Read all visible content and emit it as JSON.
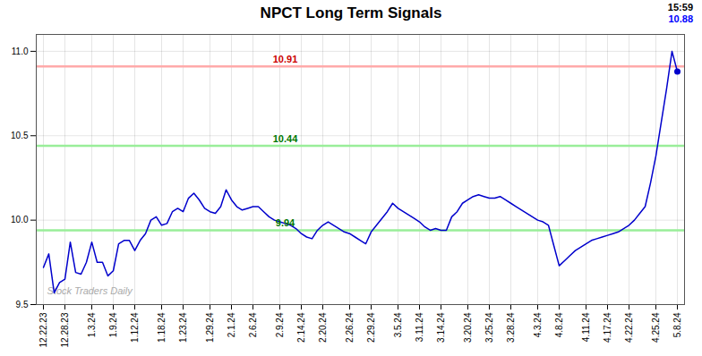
{
  "chart_data": {
    "type": "line",
    "title": "NPCT Long Term Signals",
    "categories": [
      "12.22.23",
      null,
      null,
      null,
      "12.28.23",
      null,
      null,
      null,
      null,
      "1.3.24",
      null,
      null,
      null,
      "1.9.24",
      null,
      null,
      null,
      "1.12.24",
      null,
      null,
      null,
      null,
      "1.18.24",
      null,
      null,
      null,
      "1.23.24",
      null,
      null,
      null,
      null,
      "1.29.24",
      null,
      null,
      null,
      "2.1.24",
      null,
      null,
      null,
      "2.6.24",
      null,
      null,
      null,
      null,
      "2.9.24",
      null,
      null,
      null,
      "2.14.24",
      null,
      null,
      null,
      "2.20.24",
      null,
      null,
      null,
      null,
      "2.26.24",
      null,
      null,
      null,
      "2.29.24",
      null,
      null,
      null,
      null,
      "3.5.24",
      null,
      null,
      null,
      "3.11.24",
      null,
      null,
      null,
      "3.14.24",
      null,
      null,
      null,
      null,
      "3.20.24",
      null,
      null,
      null,
      "3.25.24",
      null,
      null,
      null,
      "3.28.24",
      null,
      null,
      null,
      null,
      "4.3.24",
      null,
      null,
      null,
      "4.8.24",
      null,
      null,
      null,
      null,
      "4.11.24",
      null,
      null,
      null,
      "4.17.24",
      null,
      null,
      null,
      "4.22.24",
      null,
      null,
      null,
      null,
      "4.25.24",
      null,
      null,
      null,
      "5.8.24"
    ],
    "values": [
      9.72,
      9.8,
      9.57,
      9.63,
      9.65,
      9.87,
      9.69,
      9.68,
      9.75,
      9.87,
      9.75,
      9.75,
      9.67,
      9.7,
      9.86,
      9.88,
      9.88,
      9.82,
      9.88,
      9.92,
      10.0,
      10.02,
      9.97,
      9.98,
      10.05,
      10.07,
      10.05,
      10.13,
      10.16,
      10.12,
      10.07,
      10.05,
      10.04,
      10.08,
      10.18,
      10.12,
      10.08,
      10.06,
      10.07,
      10.08,
      10.08,
      10.05,
      10.02,
      10.0,
      9.99,
      9.98,
      9.97,
      9.95,
      9.92,
      9.9,
      9.89,
      9.94,
      9.97,
      9.99,
      9.97,
      9.95,
      9.93,
      9.92,
      9.9,
      9.88,
      9.86,
      9.93,
      9.97,
      10.01,
      10.05,
      10.1,
      10.07,
      10.05,
      10.03,
      10.01,
      9.99,
      9.96,
      9.94,
      9.95,
      9.94,
      9.94,
      10.02,
      10.05,
      10.1,
      10.12,
      10.14,
      10.15,
      10.14,
      10.13,
      10.13,
      10.14,
      10.12,
      10.1,
      10.08,
      10.06,
      10.04,
      10.02,
      10.0,
      9.99,
      9.97,
      9.85,
      9.73,
      9.76,
      9.79,
      9.82,
      9.84,
      9.86,
      9.88,
      9.89,
      9.9,
      9.91,
      9.92,
      9.93,
      9.95,
      9.97,
      10.0,
      10.04,
      10.08,
      10.22,
      10.38,
      10.58,
      10.78,
      11.0,
      10.88
    ],
    "color": "#0000cc",
    "marker": "dot",
    "ylim": [
      9.5,
      11.1
    ],
    "yticks": [
      9.5,
      {
        "value": 10,
        "label": "10.0"
      },
      10.5,
      {
        "value": 11,
        "label": "11.0"
      }
    ],
    "grid": true,
    "hlines": [
      {
        "value": 10.91,
        "color": "#ffaaaa",
        "label": "10.91",
        "label_color": "#cc0000"
      },
      {
        "value": 10.44,
        "color": "#99ee99",
        "label": "10.44",
        "label_color": "#007700"
      },
      {
        "value": 9.94,
        "color": "#99ee99",
        "label": "9.94",
        "label_color": "#007700"
      }
    ],
    "watermark": {
      "text": "Stock Traders Daily",
      "color": "#aaaaaa"
    },
    "last_time": {
      "text": "15:59",
      "color": "#000000"
    },
    "last_price": {
      "text": "10.88",
      "color": "#0000ff"
    }
  }
}
